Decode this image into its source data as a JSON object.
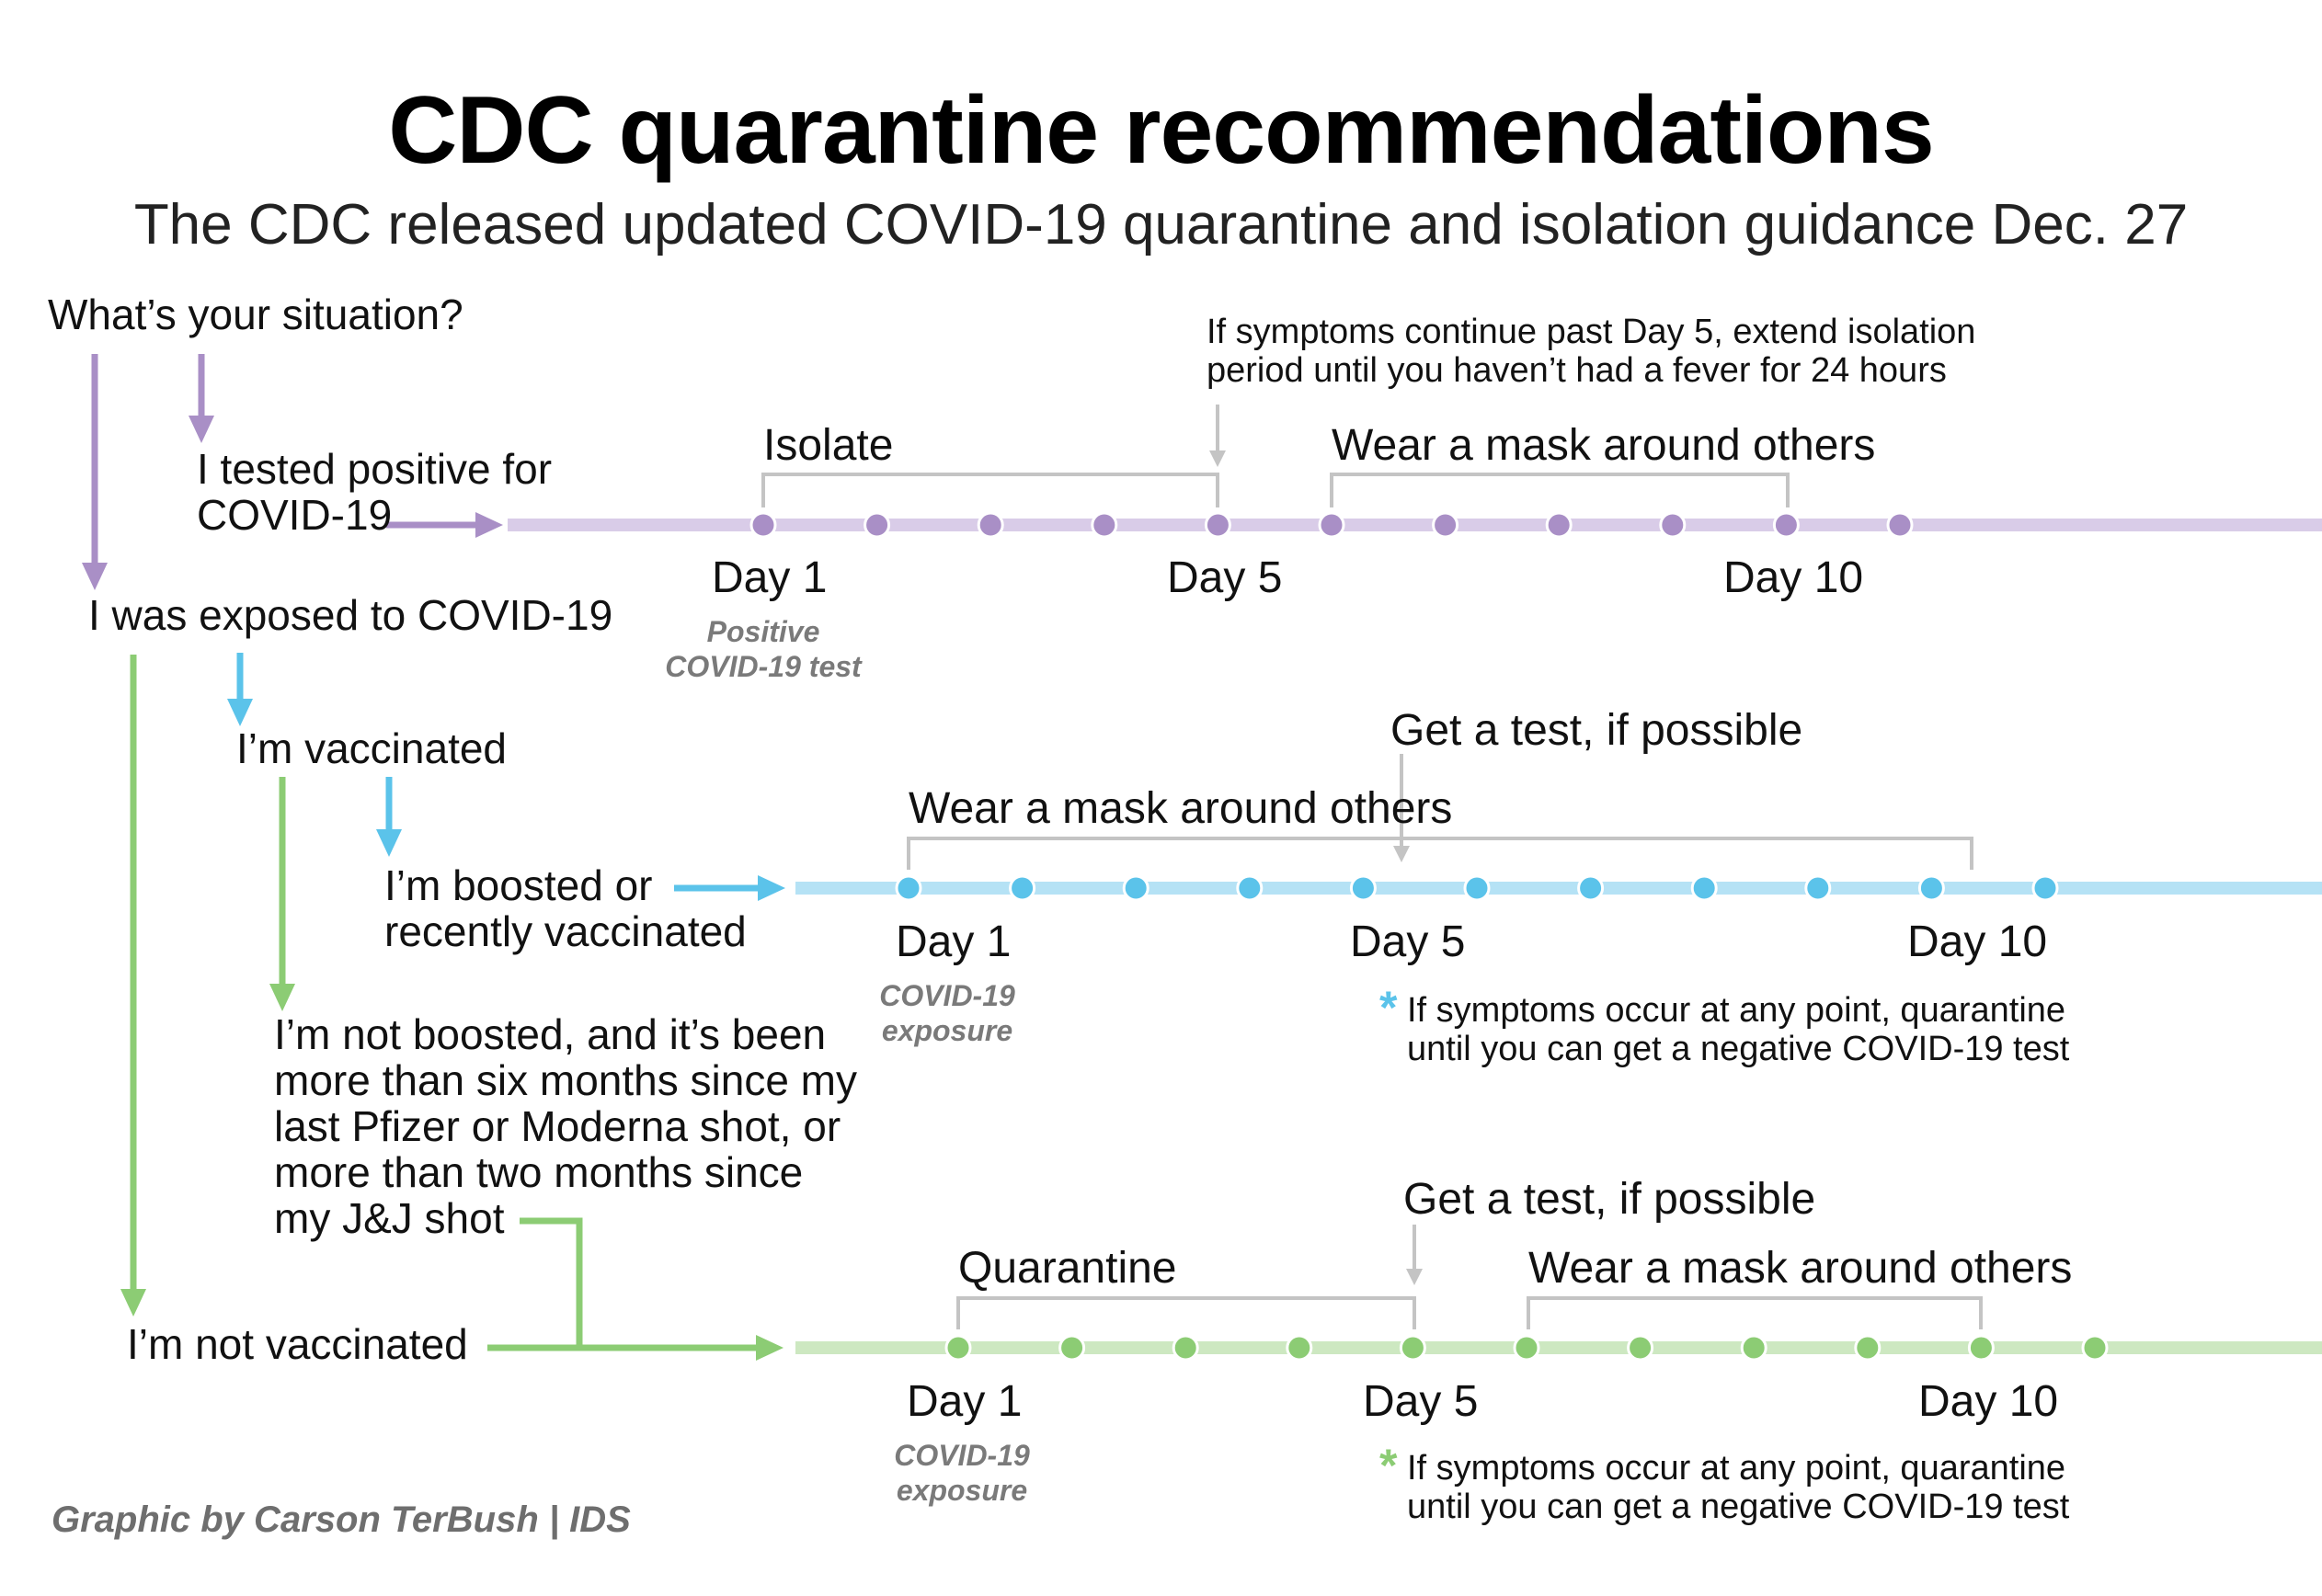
{
  "title": "CDC quarantine recommendations",
  "subtitle": "The CDC released updated COVID-19 quarantine and isolation guidance Dec. 27",
  "question": "What’s your situation?",
  "situations": {
    "tested_positive": "I tested positive for\nCOVID-19",
    "exposed": "I was exposed to COVID-19",
    "vaccinated": "I’m vaccinated",
    "boosted": "I’m boosted or\nrecently  vaccinated",
    "not_boosted": "I’m not boosted, and it’s been\nmore than six months since my\nlast Pfizer or Moderna shot, or\nmore than two months since\nmy J&J shot",
    "not_vaccinated": "I’m not vaccinated"
  },
  "timelines": {
    "positive": {
      "color": "#a98fc6",
      "track_color": "#d9cce8",
      "isolate_label": "Isolate",
      "mask_label": "Wear a mask around others",
      "symptom_note": "If symptoms continue past Day 5, extend isolation\nperiod until you haven’t had a fever for 24 hours",
      "day1": "Day 1",
      "day5": "Day 5",
      "day10": "Day 10",
      "day1_caption": "Positive\nCOVID-19 test"
    },
    "boosted": {
      "color": "#5bc3ea",
      "track_color": "#b5e2f5",
      "test_label": "Get a test, if possible",
      "mask_label": "Wear a mask around others",
      "day1": "Day 1",
      "day5": "Day 5",
      "day10": "Day 10",
      "day1_caption": "COVID-19\nexposure",
      "footnote_star": "*",
      "footnote": "If symptoms occur at any point, quarantine\n      until you can get a negative COVID-19 test"
    },
    "unvaccinated": {
      "color": "#8ccc74",
      "track_color": "#cde8c1",
      "test_label": "Get a test, if possible",
      "quarantine_label": "Quarantine",
      "mask_label": "Wear a mask around others",
      "day1": "Day 1",
      "day5": "Day 5",
      "day10": "Day 10",
      "day1_caption": "COVID-19\nexposure",
      "footnote_star": "*",
      "footnote": "If symptoms occur at any point, quarantine\n      until you can get a negative COVID-19 test"
    }
  },
  "bracket_color": "#c4c4c4",
  "credit": "Graphic by Carson TerBush | IDS"
}
